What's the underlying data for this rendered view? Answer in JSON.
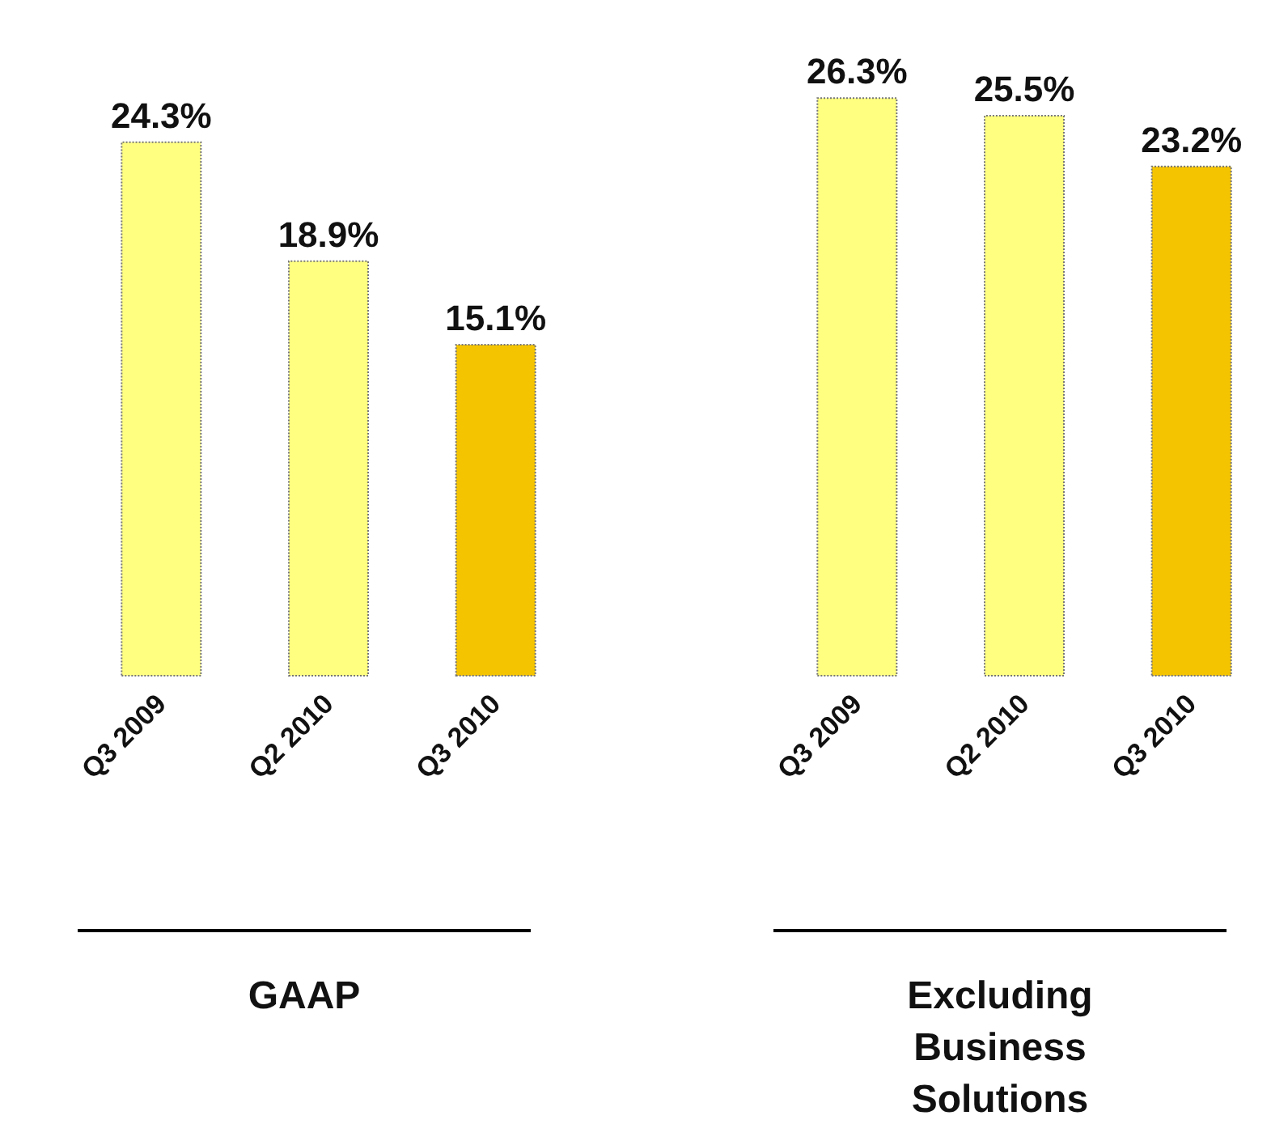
{
  "chart_data": [
    {
      "type": "bar",
      "categories": [
        "Q3 2009",
        "Q2 2010",
        "Q3 2010"
      ],
      "values": [
        24.3,
        18.9,
        15.1
      ],
      "colors": [
        "#ffff80",
        "#ffff80",
        "#f5c400"
      ],
      "value_labels": [
        "24.3%",
        "18.9%",
        "15.1%"
      ],
      "xlabel": "GAAP",
      "tick_labels": "x"
    },
    {
      "type": "bar",
      "categories": [
        "Q3 2009",
        "Q2 2010",
        "Q3 2010"
      ],
      "values": [
        26.3,
        25.5,
        23.2
      ],
      "colors": [
        "#ffff80",
        "#ffff80",
        "#f5c400"
      ],
      "value_labels": [
        "26.3%",
        "25.5%",
        "23.2%"
      ],
      "xlabel": "Excluding Business Solutions",
      "tick_labels": "x"
    }
  ]
}
